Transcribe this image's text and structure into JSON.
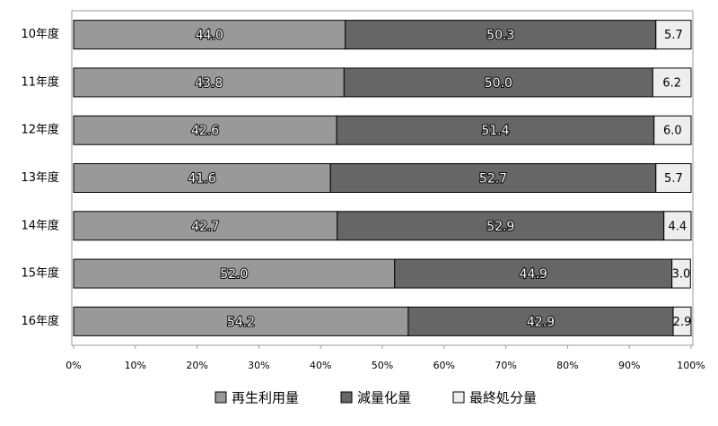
{
  "chart_data": {
    "type": "stacked_bar_horizontal",
    "categories": [
      "10年度",
      "11年度",
      "12年度",
      "13年度",
      "14年度",
      "15年度",
      "16年度"
    ],
    "series": [
      {
        "name": "再生利用量",
        "color": "#999999",
        "values": [
          44.0,
          43.8,
          42.6,
          41.6,
          42.7,
          52.0,
          54.2
        ],
        "value_labels": [
          "44.0",
          "43.8",
          "42.6",
          "41.6",
          "42.7",
          "52.0",
          "54.2"
        ]
      },
      {
        "name": "減量化量",
        "color": "#666666",
        "values": [
          50.3,
          50.0,
          51.4,
          52.7,
          52.9,
          44.9,
          42.9
        ],
        "value_labels": [
          "50.3",
          "50.0",
          "51.4",
          "52.7",
          "52.9",
          "44.9",
          "42.9"
        ]
      },
      {
        "name": "最終処分量",
        "color": "#eeeeee",
        "values": [
          5.7,
          6.2,
          6.0,
          5.7,
          4.4,
          3.0,
          2.9
        ],
        "value_labels": [
          "5.7",
          "6.2",
          "6.0",
          "5.7",
          "4.4",
          "3.0",
          "2.9"
        ]
      }
    ],
    "xlim": [
      0,
      100
    ],
    "xticks": [
      {
        "value": 0,
        "label": "0%"
      },
      {
        "value": 10,
        "label": "10%"
      },
      {
        "value": 20,
        "label": "20%"
      },
      {
        "value": 30,
        "label": "30%"
      },
      {
        "value": 40,
        "label": "40%"
      },
      {
        "value": 50,
        "label": "50%"
      },
      {
        "value": 60,
        "label": "60%"
      },
      {
        "value": 70,
        "label": "70%"
      },
      {
        "value": 80,
        "label": "80%"
      },
      {
        "value": 90,
        "label": "90%"
      },
      {
        "value": 100,
        "label": "100%"
      }
    ],
    "legend": "bottom"
  }
}
